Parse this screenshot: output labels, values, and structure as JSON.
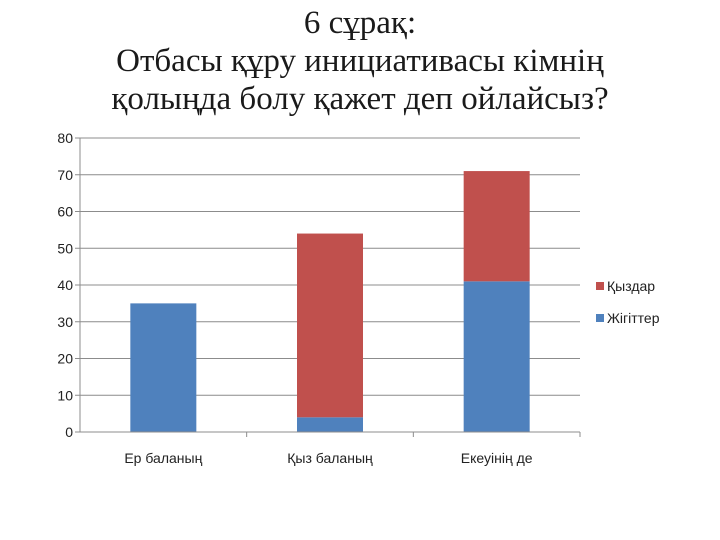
{
  "chart_data": {
    "type": "bar",
    "stacked": true,
    "title_lines": [
      "6 сұрақ:",
      "Отбасы құру инициативасы кімнің",
      "қолыңда болу қажет деп ойлайсыз?"
    ],
    "categories": [
      "Ер баланың",
      "Қыз баланың",
      "Екеуінің де"
    ],
    "series": [
      {
        "name": "Жігіттер",
        "values": [
          35,
          4,
          41
        ],
        "color": "#4f81bd"
      },
      {
        "name": "Қыздар",
        "values": [
          0,
          50,
          30
        ],
        "color": "#c0504d"
      }
    ],
    "ylim": [
      0,
      80
    ],
    "yticks": [
      0,
      10,
      20,
      30,
      40,
      50,
      60,
      70,
      80
    ],
    "grid": true,
    "legend_position": "right"
  }
}
